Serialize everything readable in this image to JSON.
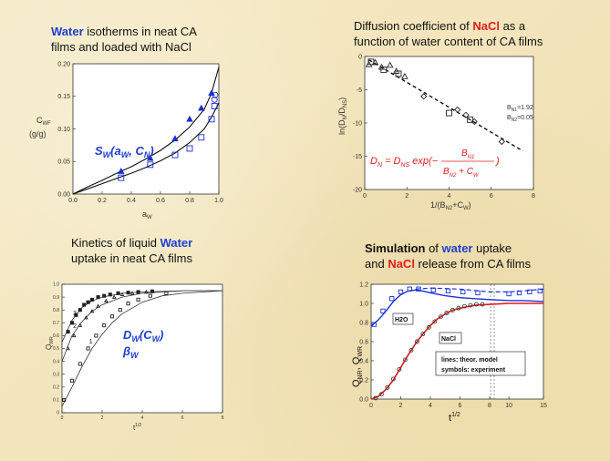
{
  "panels": [
    {
      "caption_line1": [
        "Water",
        " isotherms in neat CA"
      ],
      "caption_line2": "films and loaded with NaCl",
      "annotation": [
        "S",
        "W",
        "(a",
        "W",
        ", C",
        "N",
        ")"
      ]
    },
    {
      "caption_line1": [
        "Diffusion coefficient of ",
        "NaCl",
        " as a"
      ],
      "caption_line2": "function of water content of CA films",
      "params": [
        "B",
        "N1",
        "=1.92",
        "B",
        "N2",
        "=0.05"
      ],
      "equation": [
        "D",
        "N",
        " = D",
        "NS",
        " exp(−",
        "B",
        "N1",
        "B",
        "N2",
        " + C",
        "W",
        ")"
      ]
    },
    {
      "caption_line1": [
        "Kinetics of liquid ",
        "Water"
      ],
      "caption_line2": "uptake in neat CA films",
      "annotation_line1": [
        "D",
        "W",
        "(C",
        "W",
        ")"
      ],
      "annotation_line2": [
        "β",
        "W"
      ]
    },
    {
      "caption_line1": [
        "Simulation",
        " of ",
        "water",
        " uptake"
      ],
      "caption_line2": [
        "and ",
        "NaCl",
        " release from CA films"
      ],
      "label_h2o": "H2O",
      "label_nacl": "NaCl",
      "legend_line1": "lines:  theor. model",
      "legend_line2": "symbols: experiment"
    }
  ],
  "chart_data": [
    {
      "type": "scatter",
      "xlabel": [
        "a",
        "W"
      ],
      "ylabel": [
        "C",
        "WF",
        "(g/g)"
      ],
      "xlim": [
        0,
        1
      ],
      "ylim": [
        0,
        0.2
      ],
      "xticks": [
        "0.0",
        "0.2",
        "0.4",
        "0.6",
        "0.8",
        "1.0"
      ],
      "yticks": [
        "0.00",
        "0.05",
        "0.10",
        "0.15",
        "0.20"
      ],
      "series": [
        {
          "marker": "filled-triangle",
          "color": "#1a2fd0",
          "x": [
            0.33,
            0.53,
            0.7,
            0.8,
            0.88,
            0.95
          ],
          "y": [
            0.035,
            0.055,
            0.085,
            0.115,
            0.132,
            0.155
          ]
        },
        {
          "marker": "open-square",
          "color": "#1a2fd0",
          "x": [
            0.33,
            0.53,
            0.7,
            0.8,
            0.88,
            0.95,
            0.97
          ],
          "y": [
            0.025,
            0.045,
            0.06,
            0.07,
            0.087,
            0.115,
            0.135
          ]
        },
        {
          "marker": "open-circle",
          "color": "#1a2fd0",
          "x": [
            0.97,
            0.975
          ],
          "y": [
            0.145,
            0.152
          ]
        }
      ],
      "curves": [
        {
          "x": [
            0,
            0.1,
            0.2,
            0.3,
            0.4,
            0.5,
            0.6,
            0.7,
            0.8,
            0.9,
            0.95,
            1.0
          ],
          "y": [
            0,
            0.011,
            0.021,
            0.032,
            0.042,
            0.054,
            0.067,
            0.083,
            0.103,
            0.13,
            0.155,
            0.195
          ]
        },
        {
          "x": [
            0,
            0.1,
            0.2,
            0.3,
            0.4,
            0.5,
            0.6,
            0.7,
            0.8,
            0.9,
            0.95,
            1.0
          ],
          "y": [
            0,
            0.008,
            0.016,
            0.024,
            0.032,
            0.041,
            0.051,
            0.063,
            0.079,
            0.1,
            0.118,
            0.14
          ]
        }
      ]
    },
    {
      "type": "scatter",
      "xlabel": [
        "1/(B",
        "N2",
        "+C",
        "W",
        ")"
      ],
      "ylabel": [
        "ln(D",
        "N",
        "/D",
        "NS",
        ")"
      ],
      "xlim": [
        0,
        8
      ],
      "ylim": [
        -20,
        0
      ],
      "xticks": [
        "0",
        "2",
        "4",
        "6",
        "8"
      ],
      "yticks": [
        "0",
        "-5",
        "-10",
        "-15",
        "-20"
      ],
      "series": [
        {
          "marker": "open-triangle",
          "color": "#222222",
          "x": [
            0.2,
            0.5,
            0.8,
            1.2,
            1.5,
            1.9
          ],
          "y": [
            -1.2,
            -0.9,
            -1.6,
            -1.3,
            -2.2,
            -3.0
          ]
        },
        {
          "marker": "open-square",
          "color": "#222222",
          "x": [
            0.3,
            0.9,
            1.6,
            4.0,
            5.0
          ],
          "y": [
            -0.8,
            -2.0,
            -2.6,
            -8.5,
            -9.5
          ]
        },
        {
          "marker": "open-diamond",
          "color": "#222222",
          "x": [
            2.8,
            4.4,
            4.8,
            5.2,
            6.5
          ],
          "y": [
            -6.0,
            -8.0,
            -8.8,
            -9.8,
            -12.8
          ]
        }
      ],
      "fit_line": {
        "x": [
          0.2,
          7.5
        ],
        "y": [
          -0.5,
          -14.2
        ]
      }
    },
    {
      "type": "scatter",
      "xlabel": [
        "t",
        "1/2"
      ],
      "ylabel": [
        "Q",
        "WR"
      ],
      "xlim": [
        0,
        8
      ],
      "ylim": [
        0,
        1
      ],
      "xticks": [
        "0",
        "2",
        "4",
        "6",
        "8"
      ],
      "yticks": [
        "0",
        "0.1",
        "0.2",
        "0.3",
        "0.4",
        "0.5",
        "0.6",
        "0.7",
        "0.8",
        "0.9",
        "1.0"
      ],
      "curve_labels": [
        "3",
        "2",
        "1"
      ],
      "series": [
        {
          "name": "3",
          "marker": "filled-square",
          "x": [
            0.3,
            0.5,
            0.7,
            0.9,
            1.1,
            1.3,
            1.5,
            1.8,
            2.1,
            2.4,
            2.8,
            3.3,
            3.8,
            4.5
          ],
          "y": [
            0.63,
            0.7,
            0.76,
            0.8,
            0.84,
            0.86,
            0.88,
            0.9,
            0.91,
            0.92,
            0.93,
            0.935,
            0.94,
            0.945
          ]
        },
        {
          "name": "2",
          "marker": "open-triangle",
          "x": [
            0.3,
            0.6,
            0.9,
            1.2,
            1.5,
            1.8,
            2.2,
            2.6,
            3.0,
            3.5,
            4.2
          ],
          "y": [
            0.5,
            0.6,
            0.68,
            0.74,
            0.79,
            0.83,
            0.87,
            0.9,
            0.92,
            0.93,
            0.94
          ]
        },
        {
          "name": "1",
          "marker": "open-square",
          "x": [
            0.1,
            0.5,
            0.9,
            1.3,
            1.7,
            2.1,
            2.5,
            2.9,
            3.3,
            3.8,
            4.4,
            5.2
          ],
          "y": [
            0.1,
            0.25,
            0.38,
            0.5,
            0.6,
            0.68,
            0.75,
            0.8,
            0.85,
            0.88,
            0.91,
            0.93
          ]
        }
      ],
      "curves": [
        {
          "x": [
            0,
            0.5,
            1,
            1.5,
            2,
            3,
            4,
            6,
            8
          ],
          "y": [
            0.55,
            0.72,
            0.82,
            0.87,
            0.9,
            0.93,
            0.94,
            0.95,
            0.95
          ]
        },
        {
          "x": [
            0,
            0.5,
            1,
            1.5,
            2,
            3,
            4,
            6,
            8
          ],
          "y": [
            0.4,
            0.6,
            0.71,
            0.79,
            0.84,
            0.9,
            0.93,
            0.95,
            0.95
          ]
        },
        {
          "x": [
            0,
            0.5,
            1,
            1.5,
            2,
            2.5,
            3,
            4,
            5,
            6,
            8
          ],
          "y": [
            0.05,
            0.2,
            0.36,
            0.5,
            0.61,
            0.7,
            0.77,
            0.86,
            0.91,
            0.93,
            0.95
          ]
        }
      ]
    },
    {
      "type": "line",
      "xlabel": [
        "t",
        "1/2"
      ],
      "ylabel": [
        "Q",
        "NR",
        ", Q",
        "WR"
      ],
      "xlim": [
        0,
        15
      ],
      "ylim": [
        0,
        1.2
      ],
      "xticks": [
        "0",
        "2",
        "4",
        "6",
        "8",
        "10",
        "15"
      ],
      "yticks": [
        "0.0",
        "0.2",
        "0.4",
        "0.6",
        "0.8",
        "1.0",
        "1.2"
      ],
      "axis_break": "between 8 and 10",
      "water_curve": {
        "x": [
          0,
          0.5,
          1,
          1.5,
          2,
          2.5,
          3,
          3.5,
          4,
          5,
          6,
          7,
          8,
          10,
          12,
          15
        ],
        "y": [
          0.76,
          0.83,
          0.92,
          1.02,
          1.09,
          1.13,
          1.14,
          1.13,
          1.11,
          1.08,
          1.06,
          1.05,
          1.04,
          1.03,
          1.03,
          1.02
        ]
      },
      "water_dashed": {
        "x": [
          3,
          4,
          6,
          8,
          10,
          12,
          15
        ],
        "y": [
          1.15,
          1.16,
          1.15,
          1.12,
          1.12,
          1.13,
          1.15
        ]
      },
      "water_points": {
        "x": [
          0.2,
          0.8,
          1.4,
          2,
          2.6,
          3.2,
          4.2,
          5.2,
          6.2,
          7.2,
          10,
          11.5,
          13,
          14.5
        ],
        "y": [
          0.78,
          0.92,
          1.05,
          1.12,
          1.15,
          1.15,
          1.14,
          1.13,
          1.12,
          1.11,
          1.1,
          1.11,
          1.12,
          1.13
        ]
      },
      "nacl_curve": {
        "x": [
          0,
          0.5,
          1,
          1.5,
          2,
          2.5,
          3,
          3.5,
          4,
          4.5,
          5,
          5.5,
          6,
          7,
          8,
          10,
          12,
          15
        ],
        "y": [
          0,
          0.03,
          0.1,
          0.2,
          0.33,
          0.46,
          0.58,
          0.68,
          0.77,
          0.84,
          0.89,
          0.93,
          0.95,
          0.98,
          0.99,
          1.0,
          1.0,
          1.0
        ]
      },
      "nacl_points": {
        "x": [
          0.3,
          0.7,
          1.1,
          1.5,
          1.9,
          2.3,
          2.7,
          3.1,
          3.5,
          3.9,
          4.3,
          4.7,
          5.1,
          5.5,
          5.9,
          6.3,
          6.7,
          7.1,
          7.5
        ],
        "y": [
          0.01,
          0.05,
          0.12,
          0.21,
          0.31,
          0.41,
          0.51,
          0.6,
          0.68,
          0.75,
          0.81,
          0.86,
          0.9,
          0.93,
          0.95,
          0.97,
          0.98,
          0.99,
          0.99
        ]
      }
    }
  ]
}
